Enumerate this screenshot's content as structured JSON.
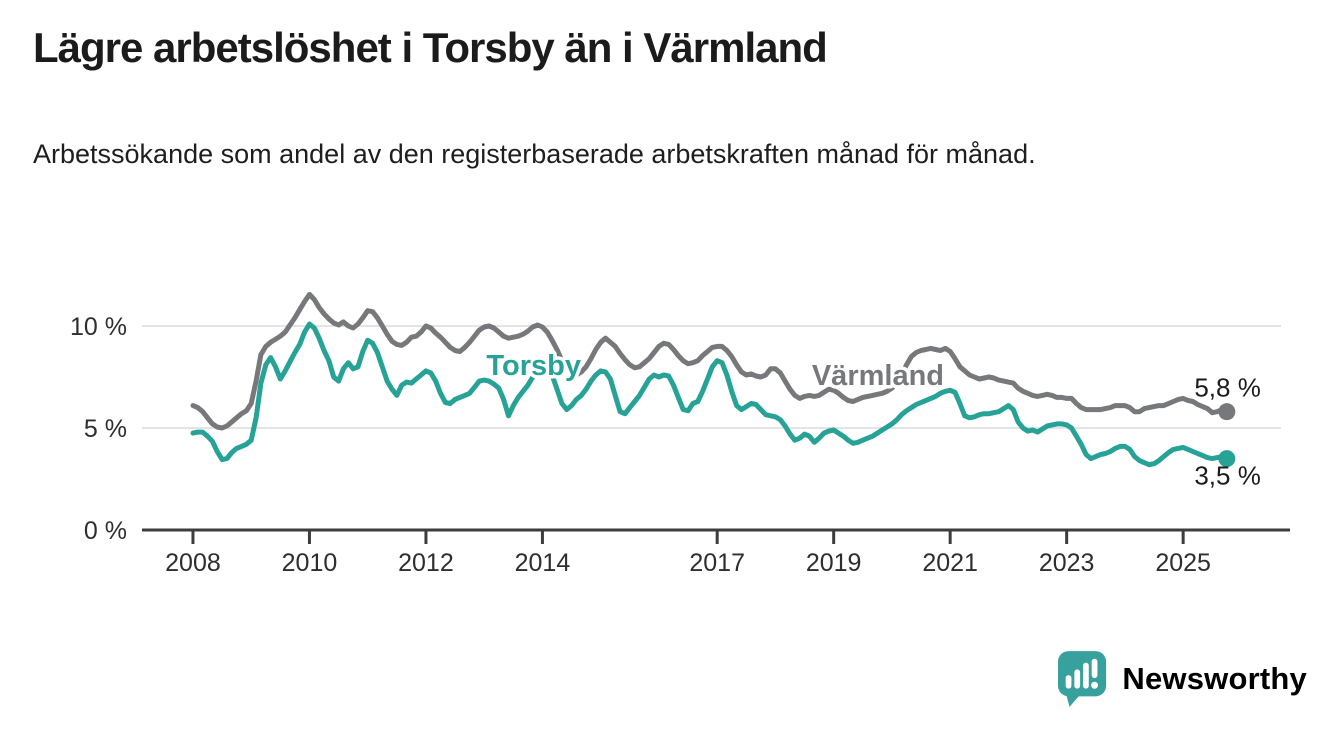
{
  "header": {
    "title": "Lägre arbetslöshet i Torsby än i Värmland",
    "subtitle": "Arbetssökande som andel av den registerbaserade arbetskraften månad för månad."
  },
  "footer": {
    "brand": "Newsworthy",
    "logo_icon": "speech-bubble-with-bar-chart-and-exclamation",
    "brand_color": "#38a09d"
  },
  "colors": {
    "torsby_line": "#26a296",
    "varmland_line": "#77787b",
    "axis_line": "#3d3d3d",
    "gridline": "#dcdcdc",
    "axis_text": "#2e2e2e",
    "end_label_text": "#1c1c1c",
    "title_text": "#1b1b1b"
  },
  "chart_data": {
    "type": "line",
    "title": "Lägre arbetslöshet i Torsby än i Värmland",
    "subtitle": "Arbetssökande som andel av den registerbaserade arbetskraften månad för månad.",
    "xlabel": "",
    "ylabel": "",
    "unit": "%",
    "grid": "horizontal",
    "legend": "inline-labels",
    "xlim": [
      2007.125,
      2026.68
    ],
    "ylim": [
      0,
      12
    ],
    "x_ticks": [
      2008,
      2010,
      2012,
      2014,
      2017,
      2019,
      2021,
      2023,
      2025
    ],
    "x_tick_labels": [
      "2008",
      "2010",
      "2012",
      "2014",
      "2017",
      "2019",
      "2021",
      "2023",
      "2025"
    ],
    "y_ticks": [
      0,
      5,
      10
    ],
    "y_tick_labels": [
      "0 %",
      "5 %",
      "10 %"
    ],
    "x_start": 2008.0,
    "points_per_year": 12,
    "x_end": 2025.75,
    "series": [
      {
        "name": "Värmland",
        "color": "#77787b",
        "end_value": 5.8,
        "end_value_label": "5,8 %",
        "end_label_offset": [
          34,
          -15
        ],
        "inline_label": {
          "x": 2019.76,
          "y": 7.1
        },
        "values": [
          6.1,
          6.0,
          5.8,
          5.5,
          5.2,
          5.05,
          5.0,
          5.1,
          5.3,
          5.5,
          5.7,
          5.85,
          6.2,
          7.3,
          8.6,
          9.0,
          9.2,
          9.35,
          9.5,
          9.7,
          10.05,
          10.4,
          10.8,
          11.2,
          11.55,
          11.3,
          10.9,
          10.6,
          10.35,
          10.15,
          10.05,
          10.2,
          10.0,
          9.9,
          10.1,
          10.4,
          10.75,
          10.7,
          10.4,
          10.0,
          9.6,
          9.25,
          9.1,
          9.05,
          9.2,
          9.45,
          9.5,
          9.7,
          10.0,
          9.9,
          9.65,
          9.45,
          9.2,
          8.95,
          8.8,
          8.75,
          8.95,
          9.2,
          9.5,
          9.8,
          9.95,
          10.0,
          9.9,
          9.7,
          9.5,
          9.4,
          9.45,
          9.5,
          9.6,
          9.75,
          9.95,
          10.05,
          9.95,
          9.7,
          9.3,
          8.85,
          8.3,
          7.85,
          7.65,
          7.6,
          7.75,
          8.0,
          8.4,
          8.85,
          9.2,
          9.4,
          9.2,
          9.0,
          8.65,
          8.35,
          8.1,
          7.95,
          8.0,
          8.2,
          8.4,
          8.7,
          9.0,
          9.15,
          9.1,
          8.85,
          8.55,
          8.3,
          8.15,
          8.2,
          8.3,
          8.55,
          8.75,
          8.95,
          9.0,
          9.0,
          8.8,
          8.5,
          8.1,
          7.75,
          7.6,
          7.65,
          7.55,
          7.5,
          7.6,
          7.9,
          7.9,
          7.7,
          7.3,
          6.9,
          6.6,
          6.45,
          6.55,
          6.6,
          6.55,
          6.6,
          6.75,
          6.9,
          6.85,
          6.7,
          6.5,
          6.35,
          6.3,
          6.4,
          6.5,
          6.55,
          6.6,
          6.65,
          6.7,
          6.8,
          6.95,
          7.2,
          7.6,
          8.1,
          8.5,
          8.7,
          8.8,
          8.85,
          8.9,
          8.85,
          8.8,
          8.9,
          8.75,
          8.4,
          8.0,
          7.8,
          7.6,
          7.5,
          7.4,
          7.45,
          7.5,
          7.45,
          7.35,
          7.3,
          7.25,
          7.2,
          6.95,
          6.8,
          6.7,
          6.6,
          6.55,
          6.6,
          6.65,
          6.6,
          6.5,
          6.5,
          6.45,
          6.45,
          6.2,
          6.0,
          5.9,
          5.9,
          5.9,
          5.9,
          5.95,
          6.0,
          6.1,
          6.1,
          6.1,
          6.0,
          5.8,
          5.8,
          5.95,
          6.0,
          6.05,
          6.1,
          6.1,
          6.2,
          6.3,
          6.4,
          6.45,
          6.35,
          6.3,
          6.15,
          6.05,
          5.95,
          5.75,
          5.8,
          5.9,
          5.8
        ]
      },
      {
        "name": "Torsby",
        "color": "#26a296",
        "end_value": 3.5,
        "end_value_label": "3,5 %",
        "end_label_offset": [
          34,
          26
        ],
        "inline_label": {
          "x": 2013.85,
          "y": 7.6
        },
        "values": [
          4.75,
          4.8,
          4.8,
          4.6,
          4.35,
          3.85,
          3.45,
          3.5,
          3.8,
          4.0,
          4.1,
          4.2,
          4.4,
          5.5,
          7.2,
          8.1,
          8.45,
          8.0,
          7.4,
          7.8,
          8.25,
          8.7,
          9.1,
          9.7,
          10.1,
          9.9,
          9.4,
          8.8,
          8.3,
          7.5,
          7.3,
          7.9,
          8.2,
          7.9,
          8.0,
          8.75,
          9.3,
          9.15,
          8.7,
          8.0,
          7.3,
          6.9,
          6.6,
          7.1,
          7.25,
          7.2,
          7.4,
          7.6,
          7.8,
          7.7,
          7.3,
          6.7,
          6.25,
          6.2,
          6.4,
          6.5,
          6.6,
          6.7,
          7.0,
          7.3,
          7.35,
          7.3,
          7.15,
          6.95,
          6.4,
          5.6,
          6.1,
          6.5,
          6.8,
          7.1,
          7.5,
          7.8,
          8.1,
          8.2,
          7.6,
          6.9,
          6.2,
          5.9,
          6.1,
          6.4,
          6.6,
          6.9,
          7.3,
          7.6,
          7.8,
          7.75,
          7.4,
          6.6,
          5.8,
          5.7,
          6.0,
          6.3,
          6.6,
          7.0,
          7.4,
          7.6,
          7.5,
          7.6,
          7.55,
          7.1,
          6.5,
          5.9,
          5.85,
          6.2,
          6.3,
          6.8,
          7.4,
          8.0,
          8.3,
          8.2,
          7.6,
          6.8,
          6.1,
          5.9,
          6.05,
          6.2,
          6.15,
          5.9,
          5.65,
          5.6,
          5.55,
          5.4,
          5.1,
          4.7,
          4.4,
          4.5,
          4.7,
          4.6,
          4.3,
          4.5,
          4.75,
          4.85,
          4.9,
          4.75,
          4.6,
          4.4,
          4.25,
          4.3,
          4.4,
          4.5,
          4.6,
          4.75,
          4.9,
          5.05,
          5.2,
          5.4,
          5.65,
          5.85,
          6.0,
          6.15,
          6.25,
          6.35,
          6.45,
          6.55,
          6.7,
          6.8,
          6.85,
          6.75,
          6.2,
          5.6,
          5.5,
          5.55,
          5.65,
          5.7,
          5.7,
          5.75,
          5.8,
          5.95,
          6.1,
          5.9,
          5.3,
          5.0,
          4.85,
          4.9,
          4.8,
          4.95,
          5.1,
          5.15,
          5.2,
          5.2,
          5.15,
          5.0,
          4.6,
          4.2,
          3.7,
          3.5,
          3.6,
          3.7,
          3.75,
          3.85,
          4.0,
          4.1,
          4.1,
          3.95,
          3.6,
          3.4,
          3.3,
          3.2,
          3.25,
          3.4,
          3.6,
          3.8,
          3.95,
          4.0,
          4.05,
          3.95,
          3.85,
          3.75,
          3.65,
          3.55,
          3.5,
          3.55,
          3.6,
          3.5
        ]
      }
    ]
  }
}
